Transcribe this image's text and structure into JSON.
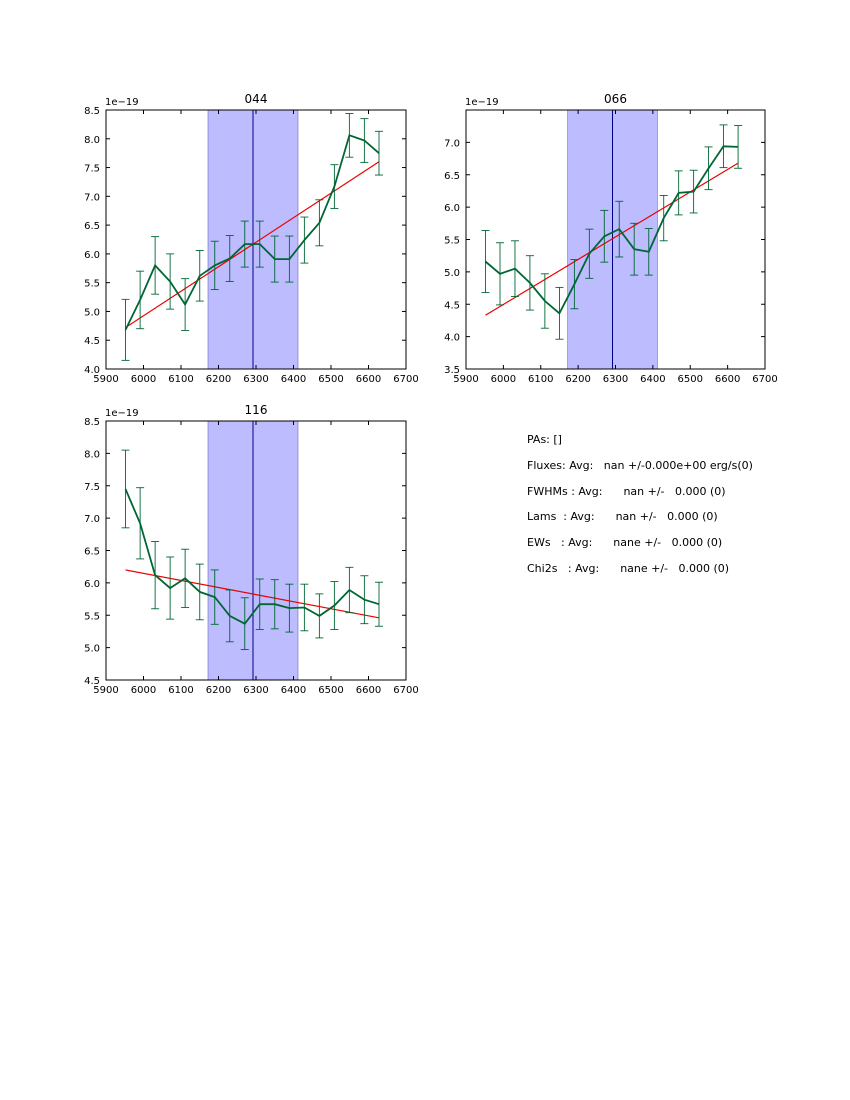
{
  "chart_data": [
    {
      "type": "line",
      "title": "044",
      "offset_text": "1e−19",
      "xlabel": "",
      "ylabel": "",
      "xlim": [
        5900,
        6700
      ],
      "ylim": [
        4.0,
        8.5
      ],
      "xticks": [
        "5900",
        "6000",
        "6100",
        "6200",
        "6300",
        "6400",
        "6500",
        "6600",
        "6700"
      ],
      "yticks": [
        "4.0",
        "4.5",
        "5.0",
        "5.5",
        "6.0",
        "6.5",
        "7.0",
        "7.5",
        "8.0",
        "8.5"
      ],
      "band": [
        6172,
        6412
      ],
      "vline": 6292,
      "colors": {
        "data": "#006633",
        "fit": "#ee0000",
        "band": "#bcbcff",
        "vline": "#000088"
      },
      "series": [
        {
          "name": "flux",
          "x": [
            5952,
            5991,
            6031,
            6071,
            6111,
            6150,
            6190,
            6230,
            6270,
            6310,
            6350,
            6389,
            6429,
            6469,
            6509,
            6549,
            6589,
            6628
          ],
          "values": [
            4.68,
            5.2,
            5.8,
            5.52,
            5.12,
            5.62,
            5.8,
            5.92,
            6.17,
            6.17,
            5.91,
            5.91,
            6.24,
            6.54,
            7.17,
            8.06,
            7.97,
            7.75
          ],
          "err": [
            0.53,
            0.5,
            0.5,
            0.48,
            0.45,
            0.44,
            0.42,
            0.4,
            0.4,
            0.4,
            0.4,
            0.4,
            0.4,
            0.4,
            0.38,
            0.38,
            0.38,
            0.38
          ]
        },
        {
          "name": "fit",
          "x": [
            5952,
            6628
          ],
          "values": [
            4.72,
            7.6
          ]
        }
      ]
    },
    {
      "type": "line",
      "title": "066",
      "offset_text": "1e−19",
      "xlabel": "",
      "ylabel": "",
      "xlim": [
        5900,
        6700
      ],
      "ylim": [
        3.5,
        7.5
      ],
      "xticks": [
        "5900",
        "6000",
        "6100",
        "6200",
        "6300",
        "6400",
        "6500",
        "6600",
        "6700"
      ],
      "yticks": [
        "3.5",
        "4.0",
        "4.5",
        "5.0",
        "5.5",
        "6.0",
        "6.5",
        "7.0"
      ],
      "band": [
        6172,
        6412
      ],
      "vline": 6292,
      "colors": {
        "data": "#006633",
        "fit": "#ee0000",
        "band": "#bcbcff",
        "vline": "#000088"
      },
      "series": [
        {
          "name": "flux",
          "x": [
            5952,
            5991,
            6031,
            6071,
            6111,
            6150,
            6190,
            6230,
            6270,
            6310,
            6350,
            6389,
            6429,
            6469,
            6509,
            6549,
            6589,
            6628
          ],
          "values": [
            5.16,
            4.97,
            5.05,
            4.83,
            4.55,
            4.36,
            4.81,
            5.28,
            5.55,
            5.66,
            5.35,
            5.31,
            5.83,
            6.22,
            6.24,
            6.6,
            6.94,
            6.93
          ],
          "err": [
            0.48,
            0.48,
            0.43,
            0.42,
            0.42,
            0.4,
            0.38,
            0.38,
            0.4,
            0.43,
            0.4,
            0.36,
            0.35,
            0.34,
            0.33,
            0.33,
            0.33,
            0.33
          ]
        },
        {
          "name": "fit",
          "x": [
            5952,
            6628
          ],
          "values": [
            4.33,
            6.68
          ]
        }
      ]
    },
    {
      "type": "line",
      "title": "116",
      "offset_text": "1e−19",
      "xlabel": "",
      "ylabel": "",
      "xlim": [
        5900,
        6700
      ],
      "ylim": [
        4.5,
        8.5
      ],
      "xticks": [
        "5900",
        "6000",
        "6100",
        "6200",
        "6300",
        "6400",
        "6500",
        "6600",
        "6700"
      ],
      "yticks": [
        "4.5",
        "5.0",
        "5.5",
        "6.0",
        "6.5",
        "7.0",
        "7.5",
        "8.0",
        "8.5"
      ],
      "band": [
        6172,
        6412
      ],
      "vline": 6292,
      "colors": {
        "data": "#006633",
        "fit": "#ee0000",
        "band": "#bcbcff",
        "vline": "#000088"
      },
      "series": [
        {
          "name": "flux",
          "x": [
            5952,
            5991,
            6031,
            6071,
            6111,
            6150,
            6190,
            6230,
            6270,
            6310,
            6350,
            6389,
            6429,
            6469,
            6509,
            6549,
            6589,
            6628
          ],
          "values": [
            7.45,
            6.92,
            6.12,
            5.92,
            6.07,
            5.86,
            5.78,
            5.49,
            5.37,
            5.67,
            5.67,
            5.61,
            5.62,
            5.49,
            5.65,
            5.89,
            5.74,
            5.67
          ],
          "err": [
            0.6,
            0.55,
            0.52,
            0.48,
            0.45,
            0.43,
            0.42,
            0.4,
            0.4,
            0.39,
            0.38,
            0.37,
            0.36,
            0.34,
            0.37,
            0.35,
            0.37,
            0.34
          ]
        },
        {
          "name": "fit",
          "x": [
            5952,
            6628
          ],
          "values": [
            6.2,
            5.46
          ]
        }
      ]
    }
  ],
  "stats": {
    "lines": [
      "PAs: []",
      "Fluxes: Avg:   nan +/-0.000e+00 erg/s(0)",
      "FWHMs : Avg:      nan +/-   0.000 (0)",
      "Lams  : Avg:      nan +/-   0.000 (0)",
      "EWs   : Avg:      nane +/-   0.000 (0)",
      "Chi2s   : Avg:      nane +/-   0.000 (0)"
    ]
  }
}
